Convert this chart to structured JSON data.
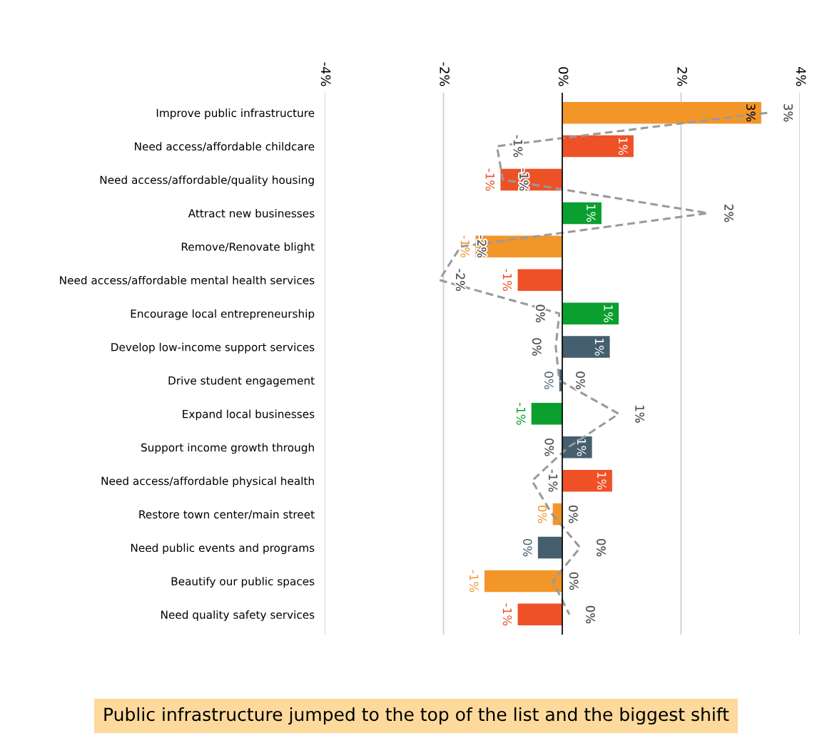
{
  "chart_data": {
    "type": "bar",
    "orientation": "horizontal",
    "categories": [
      "Improve public infrastructure",
      "Need access/affordable childcare",
      "Need access/affordable/quality housing",
      "Attract new businesses",
      "Remove/Renovate blight",
      "Need access/affordable mental health services",
      "Encourage local entrepreneurship",
      "Develop low-income support services",
      "Drive student engagement",
      "Expand local businesses",
      "Support income growth through",
      "Need access/affordable physical health",
      "Restore town center/main street",
      "Need public events and programs",
      "Beautify our public spaces",
      "Need quality safety services"
    ],
    "series": [
      {
        "values": [
          3.35,
          1.2,
          -1.04,
          0.66,
          -1.46,
          -0.75,
          0.95,
          0.8,
          -0.05,
          -0.52,
          0.5,
          0.84,
          -0.16,
          -0.41,
          -1.31,
          -0.75
        ],
        "colors": [
          "#f2962a",
          "#ef5127",
          "#ef5127",
          "#0a9f2f",
          "#f2962a",
          "#ef5127",
          "#0a9f2f",
          "#465f6f",
          "#465f6f",
          "#0a9f2f",
          "#465f6f",
          "#ef5127",
          "#f2962a",
          "#465f6f",
          "#f2962a",
          "#ef5127"
        ],
        "value_labels": [
          "3%",
          "1%",
          "-1%",
          "1%",
          "-1%",
          "-1%",
          "1%",
          "1%",
          "0%",
          "-1%",
          "1%",
          "1%",
          "0%",
          "0%",
          "-1%",
          "-1%"
        ]
      },
      {
        "type": "line",
        "color": "#9a9a9a",
        "line_style": "dashed",
        "values": [
          3.45,
          -1.1,
          -1.0,
          2.45,
          -1.71,
          -2.07,
          -0.05,
          -0.11,
          -0.05,
          0.95,
          0.1,
          -0.51,
          -0.17,
          0.3,
          -0.16,
          0.12
        ],
        "value_labels": [
          "3%",
          "-1%",
          "-1%",
          "2%",
          "-2%",
          "-2%",
          "0%",
          "0%",
          "0%",
          "1%",
          "0%",
          "-1%",
          "0%",
          "0%",
          "0%",
          "0%"
        ]
      }
    ],
    "xlim": [
      -4,
      4
    ],
    "xticks": [
      {
        "value": -4,
        "label": "-4%"
      },
      {
        "value": -2,
        "label": "-2%"
      },
      {
        "value": 0,
        "label": "0%"
      },
      {
        "value": 2,
        "label": "2%"
      },
      {
        "value": 4,
        "label": "4%"
      }
    ],
    "grid": "x",
    "ref_lines": [
      {
        "axis": "x",
        "value": 0,
        "color": "#000000"
      }
    ],
    "annotations": [
      "Public infrastructure jumped to the top of the list and the biggest shift"
    ]
  }
}
